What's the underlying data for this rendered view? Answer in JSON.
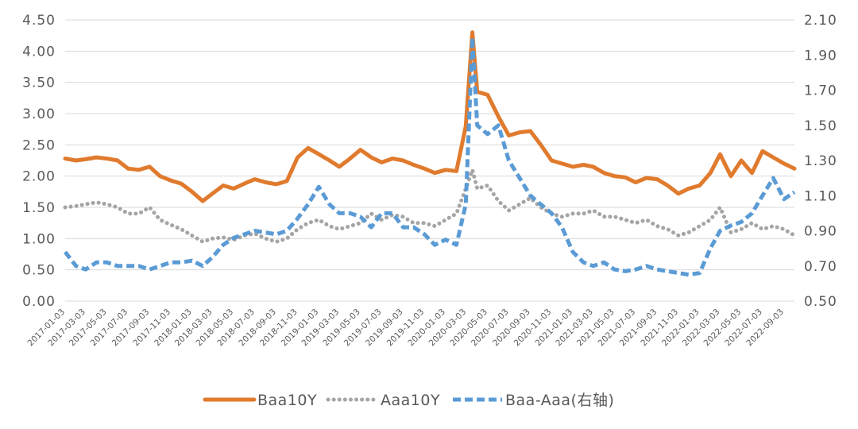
{
  "chart_data": {
    "type": "line",
    "title": "",
    "xlabel": "",
    "ylabel": "",
    "colors": {
      "Baa10Y": "#E07B2E",
      "Aaa10Y": "#A5A5A5",
      "Baa-Aaa": "#5B9BD5"
    },
    "left_axis": {
      "min": 0,
      "max": 4.5,
      "step": 0.5,
      "tick_labels": [
        "0.00",
        "0.50",
        "1.00",
        "1.50",
        "2.00",
        "2.50",
        "3.00",
        "3.50",
        "4.00",
        "4.50"
      ]
    },
    "right_axis": {
      "min": 0.5,
      "max": 2.1,
      "step": 0.2,
      "tick_labels": [
        "0.50",
        "0.70",
        "0.90",
        "1.10",
        "1.30",
        "1.50",
        "1.70",
        "1.90",
        "2.10"
      ]
    },
    "x_start": "2017-01-03",
    "x_end": "2022-10-03",
    "x_tick_labels": [
      "2017-01-03",
      "2017-03-03",
      "2017-05-03",
      "2017-07-03",
      "2017-09-03",
      "2017-11-03",
      "2018-01-03",
      "2018-03-03",
      "2018-05-03",
      "2018-07-03",
      "2018-09-03",
      "2018-11-03",
      "2019-01-03",
      "2019-03-03",
      "2019-05-03",
      "2019-07-03",
      "2019-09-03",
      "2019-11-03",
      "2020-01-03",
      "2020-03-03",
      "2020-05-03",
      "2020-07-03",
      "2020-09-03",
      "2020-11-03",
      "2021-01-03",
      "2021-03-03",
      "2021-05-03",
      "2021-07-03",
      "2021-09-03",
      "2021-11-03",
      "2022-01-03",
      "2022-03-03",
      "2022-05-03",
      "2022-07-03",
      "2022-09-03"
    ],
    "grid": true,
    "legend_position": "bottom",
    "series": [
      {
        "name": "Baa10Y",
        "axis": "left",
        "style": "solid",
        "x": [
          "2017-01-03",
          "2017-02-03",
          "2017-03-03",
          "2017-04-03",
          "2017-05-03",
          "2017-06-03",
          "2017-07-03",
          "2017-08-03",
          "2017-09-03",
          "2017-10-03",
          "2017-11-03",
          "2017-12-03",
          "2018-01-03",
          "2018-02-03",
          "2018-03-03",
          "2018-04-03",
          "2018-05-03",
          "2018-06-03",
          "2018-07-03",
          "2018-08-03",
          "2018-09-03",
          "2018-10-03",
          "2018-11-03",
          "2018-12-03",
          "2019-01-03",
          "2019-02-03",
          "2019-03-03",
          "2019-04-03",
          "2019-05-03",
          "2019-06-03",
          "2019-07-03",
          "2019-08-03",
          "2019-09-03",
          "2019-10-03",
          "2019-11-03",
          "2019-12-03",
          "2020-01-03",
          "2020-02-03",
          "2020-03-01",
          "2020-03-20",
          "2020-04-03",
          "2020-05-03",
          "2020-06-03",
          "2020-07-03",
          "2020-08-03",
          "2020-09-03",
          "2020-10-03",
          "2020-11-03",
          "2020-12-03",
          "2021-01-03",
          "2021-02-03",
          "2021-03-03",
          "2021-04-03",
          "2021-05-03",
          "2021-06-03",
          "2021-07-03",
          "2021-08-03",
          "2021-09-03",
          "2021-10-03",
          "2021-11-03",
          "2021-12-03",
          "2022-01-03",
          "2022-02-03",
          "2022-03-03",
          "2022-04-03",
          "2022-05-03",
          "2022-06-03",
          "2022-07-03",
          "2022-08-03",
          "2022-09-03",
          "2022-10-03"
        ],
        "values": [
          2.28,
          2.25,
          2.27,
          2.3,
          2.28,
          2.25,
          2.12,
          2.1,
          2.15,
          2.0,
          1.93,
          1.88,
          1.75,
          1.6,
          1.72,
          1.85,
          1.8,
          1.88,
          1.95,
          1.9,
          1.87,
          1.92,
          2.3,
          2.45,
          2.35,
          2.25,
          2.15,
          2.28,
          2.42,
          2.3,
          2.22,
          2.28,
          2.25,
          2.18,
          2.12,
          2.05,
          2.1,
          2.08,
          2.8,
          4.3,
          3.35,
          3.3,
          2.95,
          2.65,
          2.7,
          2.72,
          2.5,
          2.25,
          2.2,
          2.15,
          2.18,
          2.15,
          2.05,
          2.0,
          1.98,
          1.9,
          1.97,
          1.95,
          1.85,
          1.72,
          1.8,
          1.85,
          2.05,
          2.35,
          2.0,
          2.25,
          2.05,
          2.4,
          2.3,
          2.2,
          2.12
        ]
      },
      {
        "name": "Aaa10Y",
        "axis": "left",
        "style": "dotted",
        "x": [
          "2017-01-03",
          "2017-02-03",
          "2017-03-03",
          "2017-04-03",
          "2017-05-03",
          "2017-06-03",
          "2017-07-03",
          "2017-08-03",
          "2017-09-03",
          "2017-10-03",
          "2017-11-03",
          "2017-12-03",
          "2018-01-03",
          "2018-02-03",
          "2018-03-03",
          "2018-04-03",
          "2018-05-03",
          "2018-06-03",
          "2018-07-03",
          "2018-08-03",
          "2018-09-03",
          "2018-10-03",
          "2018-11-03",
          "2018-12-03",
          "2019-01-03",
          "2019-02-03",
          "2019-03-03",
          "2019-04-03",
          "2019-05-03",
          "2019-06-03",
          "2019-07-03",
          "2019-08-03",
          "2019-09-03",
          "2019-10-03",
          "2019-11-03",
          "2019-12-03",
          "2020-01-03",
          "2020-02-03",
          "2020-03-01",
          "2020-03-20",
          "2020-04-03",
          "2020-05-03",
          "2020-06-03",
          "2020-07-03",
          "2020-08-03",
          "2020-09-03",
          "2020-10-03",
          "2020-11-03",
          "2020-12-03",
          "2021-01-03",
          "2021-02-03",
          "2021-03-03",
          "2021-04-03",
          "2021-05-03",
          "2021-06-03",
          "2021-07-03",
          "2021-08-03",
          "2021-09-03",
          "2021-10-03",
          "2021-11-03",
          "2021-12-03",
          "2022-01-03",
          "2022-02-03",
          "2022-03-03",
          "2022-04-03",
          "2022-05-03",
          "2022-06-03",
          "2022-07-03",
          "2022-08-03",
          "2022-09-03",
          "2022-10-03"
        ],
        "values": [
          1.5,
          1.52,
          1.55,
          1.58,
          1.55,
          1.5,
          1.4,
          1.4,
          1.5,
          1.3,
          1.22,
          1.15,
          1.05,
          0.95,
          1.0,
          1.02,
          0.98,
          1.05,
          1.08,
          1.0,
          0.95,
          1.0,
          1.15,
          1.25,
          1.3,
          1.2,
          1.15,
          1.2,
          1.25,
          1.4,
          1.3,
          1.38,
          1.35,
          1.25,
          1.25,
          1.2,
          1.3,
          1.4,
          1.8,
          2.1,
          1.8,
          1.85,
          1.6,
          1.45,
          1.55,
          1.65,
          1.5,
          1.4,
          1.35,
          1.4,
          1.4,
          1.45,
          1.35,
          1.35,
          1.3,
          1.25,
          1.3,
          1.2,
          1.15,
          1.05,
          1.1,
          1.2,
          1.3,
          1.5,
          1.1,
          1.15,
          1.25,
          1.15,
          1.2,
          1.15,
          1.05
        ]
      },
      {
        "name": "Baa-Aaa(右轴)",
        "axis": "right",
        "style": "dashed",
        "x": [
          "2017-01-03",
          "2017-02-03",
          "2017-03-03",
          "2017-04-03",
          "2017-05-03",
          "2017-06-03",
          "2017-07-03",
          "2017-08-03",
          "2017-09-03",
          "2017-10-03",
          "2017-11-03",
          "2017-12-03",
          "2018-01-03",
          "2018-02-03",
          "2018-03-03",
          "2018-04-03",
          "2018-05-03",
          "2018-06-03",
          "2018-07-03",
          "2018-08-03",
          "2018-09-03",
          "2018-10-03",
          "2018-11-03",
          "2018-12-03",
          "2019-01-03",
          "2019-02-03",
          "2019-03-03",
          "2019-04-03",
          "2019-05-03",
          "2019-06-03",
          "2019-07-03",
          "2019-08-03",
          "2019-09-03",
          "2019-10-03",
          "2019-11-03",
          "2019-12-03",
          "2020-01-03",
          "2020-02-03",
          "2020-03-01",
          "2020-03-20",
          "2020-04-03",
          "2020-05-03",
          "2020-06-03",
          "2020-07-03",
          "2020-08-03",
          "2020-09-03",
          "2020-10-03",
          "2020-11-03",
          "2020-12-03",
          "2021-01-03",
          "2021-02-03",
          "2021-03-03",
          "2021-04-03",
          "2021-05-03",
          "2021-06-03",
          "2021-07-03",
          "2021-08-03",
          "2021-09-03",
          "2021-10-03",
          "2021-11-03",
          "2021-12-03",
          "2022-01-03",
          "2022-02-03",
          "2022-03-03",
          "2022-04-03",
          "2022-05-03",
          "2022-06-03",
          "2022-07-03",
          "2022-08-03",
          "2022-09-03",
          "2022-10-03"
        ],
        "values": [
          0.78,
          0.7,
          0.68,
          0.72,
          0.72,
          0.7,
          0.7,
          0.7,
          0.68,
          0.7,
          0.72,
          0.72,
          0.73,
          0.7,
          0.75,
          0.82,
          0.86,
          0.88,
          0.9,
          0.89,
          0.88,
          0.9,
          0.97,
          1.05,
          1.15,
          1.05,
          1.0,
          1.0,
          0.98,
          0.92,
          1.0,
          1.0,
          0.92,
          0.92,
          0.88,
          0.82,
          0.85,
          0.82,
          1.05,
          2.0,
          1.5,
          1.45,
          1.5,
          1.3,
          1.2,
          1.1,
          1.05,
          1.0,
          0.92,
          0.78,
          0.72,
          0.7,
          0.72,
          0.68,
          0.67,
          0.68,
          0.7,
          0.68,
          0.67,
          0.66,
          0.65,
          0.66,
          0.8,
          0.9,
          0.93,
          0.95,
          1.0,
          1.1,
          1.2,
          1.08,
          1.12
        ]
      }
    ]
  }
}
